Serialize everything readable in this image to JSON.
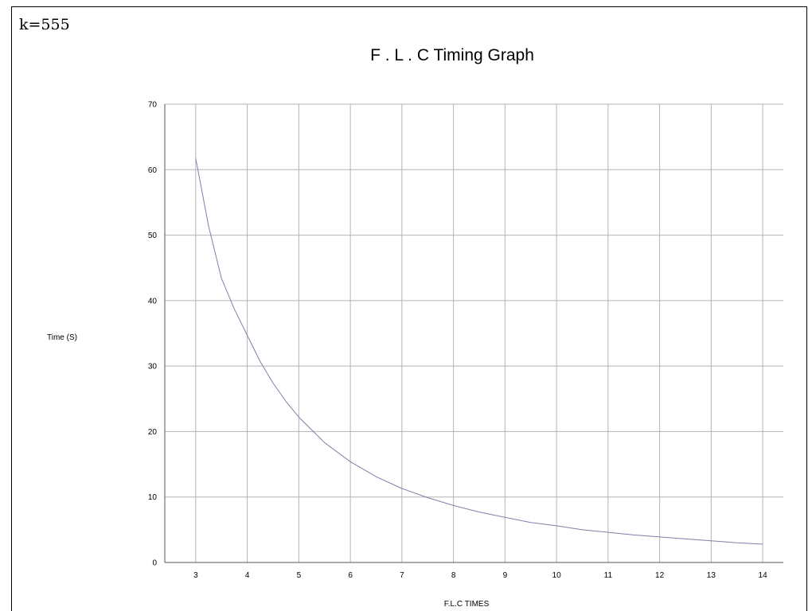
{
  "k_label": "k=555",
  "chart_data": {
    "type": "line",
    "title": "F . L . C Timing Graph",
    "xlabel": "F.L.C TIMES",
    "ylabel": "Time (S)",
    "xlim": [
      2.4,
      14.4
    ],
    "ylim": [
      0,
      70
    ],
    "x_ticks": [
      3,
      4,
      5,
      6,
      7,
      8,
      9,
      10,
      11,
      12,
      13,
      14
    ],
    "y_ticks": [
      0,
      10,
      20,
      30,
      40,
      50,
      60,
      70
    ],
    "grid": true,
    "line_color": "#8a7aa8",
    "series": [
      {
        "x": [
          3,
          3.25,
          3.5,
          3.75,
          4,
          4.25,
          4.5,
          4.75,
          5,
          5.5,
          6,
          6.5,
          7,
          7.5,
          8,
          8.5,
          9,
          9.5,
          10,
          10.5,
          11,
          11.5,
          12,
          12.5,
          13,
          13.5,
          14
        ],
        "y": [
          61.7,
          51.4,
          43.4,
          38.7,
          34.7,
          30.7,
          27.4,
          24.6,
          22.2,
          18.3,
          15.4,
          13.1,
          11.3,
          9.9,
          8.7,
          7.7,
          6.9,
          6.1,
          5.6,
          5.0,
          4.6,
          4.2,
          3.9,
          3.6,
          3.3,
          3.0,
          2.8
        ]
      }
    ]
  }
}
